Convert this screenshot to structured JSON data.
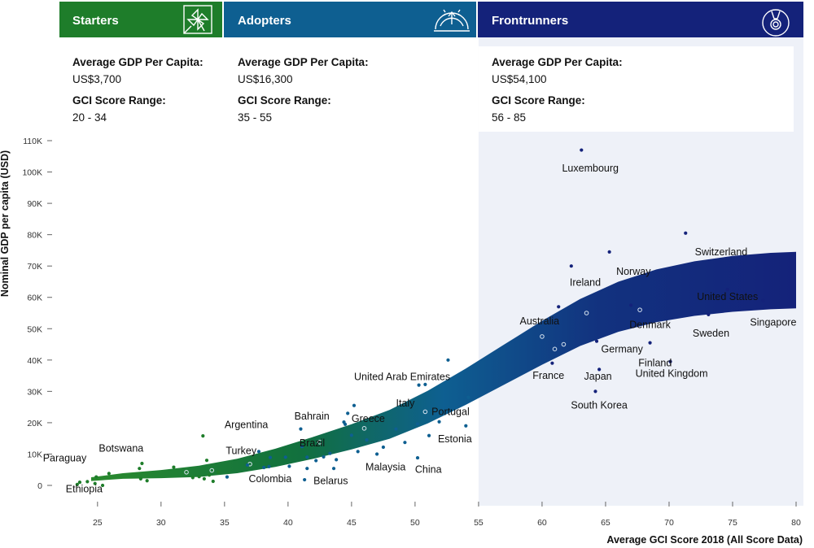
{
  "segments": [
    {
      "key": "starters",
      "name": "Starters",
      "color": "#1e7d2a",
      "icon": "pinwheel-icon",
      "gdp_heading": "Average GDP Per Capita:",
      "gdp_value": "US$3,700",
      "gci_heading": "GCI Score Range:",
      "gci_value": "20 - 34"
    },
    {
      "key": "adopters",
      "name": "Adopters",
      "color": "#0e5f91",
      "icon": "gauge-icon",
      "gdp_heading": "Average GDP Per Capita:",
      "gdp_value": "US$16,300",
      "gci_heading": "GCI Score Range:",
      "gci_value": "35 - 55"
    },
    {
      "key": "frontrunners",
      "name": "Frontrunners",
      "color": "#14227a",
      "icon": "medal-icon",
      "gdp_heading": "Average GDP Per Capita:",
      "gdp_value": "US$54,100",
      "gci_heading": "GCI Score Range:",
      "gci_value": "56 - 85"
    }
  ],
  "chart_data": {
    "type": "scatter",
    "xlabel": "Average GCI Score 2018 (All Score Data)",
    "ylabel": "Nominal GDP per capita (USD)",
    "xlim": [
      22,
      80
    ],
    "ylim": [
      -2000,
      115000
    ],
    "xticks": [
      25,
      30,
      35,
      40,
      45,
      50,
      55,
      60,
      65,
      70,
      75,
      80
    ],
    "yticks": [
      0,
      10000,
      20000,
      30000,
      40000,
      50000,
      60000,
      70000,
      80000,
      90000,
      100000,
      110000
    ],
    "ytick_labels": [
      "0",
      "10K",
      "20K",
      "30K",
      "40K",
      "50K",
      "60K",
      "70K",
      "80K",
      "90K",
      "100K",
      "110K"
    ],
    "frontrunner_zone_start": 55,
    "segment_colors": {
      "starters": "#1e7d2a",
      "adopters": "#0e5f91",
      "frontrunners": "#14227a"
    },
    "trend_band": [
      {
        "x": 24.5,
        "y": 2000,
        "w": 600
      },
      {
        "x": 27,
        "y": 3000,
        "w": 900
      },
      {
        "x": 30,
        "y": 3600,
        "w": 1300
      },
      {
        "x": 33,
        "y": 4500,
        "w": 1800
      },
      {
        "x": 36,
        "y": 6200,
        "w": 2300
      },
      {
        "x": 39,
        "y": 8800,
        "w": 2900
      },
      {
        "x": 42,
        "y": 12000,
        "w": 3500
      },
      {
        "x": 45,
        "y": 15500,
        "w": 4000
      },
      {
        "x": 48,
        "y": 19500,
        "w": 4600
      },
      {
        "x": 51,
        "y": 25000,
        "w": 5200
      },
      {
        "x": 54,
        "y": 31500,
        "w": 5800
      },
      {
        "x": 57,
        "y": 38500,
        "w": 6400
      },
      {
        "x": 60,
        "y": 45500,
        "w": 7000
      },
      {
        "x": 63,
        "y": 52000,
        "w": 7500
      },
      {
        "x": 66,
        "y": 57000,
        "w": 8000
      },
      {
        "x": 69,
        "y": 60500,
        "w": 8400
      },
      {
        "x": 72,
        "y": 62800,
        "w": 8700
      },
      {
        "x": 75,
        "y": 64300,
        "w": 8900
      },
      {
        "x": 78,
        "y": 65200,
        "w": 9000
      },
      {
        "x": 80,
        "y": 65500,
        "w": 9000
      }
    ],
    "band_markers": [
      {
        "x": 32,
        "y": 4200
      },
      {
        "x": 34,
        "y": 4800
      },
      {
        "x": 37,
        "y": 6800
      },
      {
        "x": 42.5,
        "y": 13800
      },
      {
        "x": 46,
        "y": 18200
      },
      {
        "x": 50.8,
        "y": 23500
      },
      {
        "x": 60,
        "y": 47500
      },
      {
        "x": 61,
        "y": 43500
      },
      {
        "x": 61.7,
        "y": 45000
      },
      {
        "x": 63.5,
        "y": 55000
      },
      {
        "x": 67.7,
        "y": 56000
      }
    ],
    "labeled_points": [
      {
        "name": "Ethiopia",
        "x": 23.4,
        "y": 300,
        "segment": "starters",
        "lx": 22.5,
        "ly": -2200,
        "anchor": "start"
      },
      {
        "name": "Paraguay",
        "x": 24.9,
        "y": 2700,
        "segment": "starters",
        "lx": 20.7,
        "ly": 7600,
        "anchor": "start"
      },
      {
        "name": "Botswana",
        "x": 28.5,
        "y": 7000,
        "segment": "starters",
        "lx": 25.1,
        "ly": 10800,
        "anchor": "start"
      },
      {
        "name": "Argentina",
        "x": 33.3,
        "y": 15800,
        "segment": "starters",
        "lx": 35,
        "ly": 18300,
        "anchor": "start"
      },
      {
        "name": "Turkey",
        "x": 37.7,
        "y": 10800,
        "segment": "adopters",
        "lx": 35.1,
        "ly": 10000,
        "anchor": "start"
      },
      {
        "name": "Colombia",
        "x": 38.5,
        "y": 6000,
        "segment": "adopters",
        "lx": 36.9,
        "ly": 1000,
        "anchor": "start"
      },
      {
        "name": "Bahrain",
        "x": 41,
        "y": 18000,
        "segment": "adopters",
        "lx": 40.5,
        "ly": 21000,
        "anchor": "start"
      },
      {
        "name": "Brazil",
        "x": 41.5,
        "y": 9000,
        "segment": "adopters",
        "lx": 40.9,
        "ly": 12400,
        "anchor": "start"
      },
      {
        "name": "Belarus",
        "x": 41.3,
        "y": 1800,
        "segment": "adopters",
        "lx": 42,
        "ly": 400,
        "anchor": "start"
      },
      {
        "name": "Greece",
        "x": 44.5,
        "y": 19500,
        "segment": "adopters",
        "lx": 45,
        "ly": 20200,
        "anchor": "start"
      },
      {
        "name": "Malaysia",
        "x": 47,
        "y": 10000,
        "segment": "adopters",
        "lx": 46.1,
        "ly": 4800,
        "anchor": "start"
      },
      {
        "name": "Italy",
        "x": 50.3,
        "y": 32000,
        "segment": "adopters",
        "lx": 48.5,
        "ly": 25200,
        "anchor": "start"
      },
      {
        "name": "United Arab Emirates",
        "x": 52.6,
        "y": 40000,
        "segment": "adopters",
        "lx": 45.2,
        "ly": 33600,
        "anchor": "start"
      },
      {
        "name": "Portugal",
        "x": 51.7,
        "y": 23000,
        "segment": "adopters",
        "lx": 51.3,
        "ly": 22500,
        "anchor": "start"
      },
      {
        "name": "Estonia",
        "x": 54,
        "y": 19000,
        "segment": "adopters",
        "lx": 51.8,
        "ly": 13700,
        "anchor": "start"
      },
      {
        "name": "China",
        "x": 50.2,
        "y": 8800,
        "segment": "adopters",
        "lx": 50,
        "ly": 4000,
        "anchor": "start"
      },
      {
        "name": "Luxembourg",
        "x": 63.1,
        "y": 107000,
        "segment": "frontrunners",
        "lx": 63.8,
        "ly": 100200,
        "anchor": "middle"
      },
      {
        "name": "Switzerland",
        "x": 71.3,
        "y": 80500,
        "segment": "frontrunners",
        "lx": 74.1,
        "ly": 73400,
        "anchor": "middle"
      },
      {
        "name": "Norway",
        "x": 65.3,
        "y": 74500,
        "segment": "frontrunners",
        "lx": 67.2,
        "ly": 67200,
        "anchor": "middle"
      },
      {
        "name": "Ireland",
        "x": 62.3,
        "y": 70000,
        "segment": "frontrunners",
        "lx": 63.4,
        "ly": 63700,
        "anchor": "middle"
      },
      {
        "name": "United States",
        "x": 74.6,
        "y": 62500,
        "segment": "frontrunners",
        "lx": 74.6,
        "ly": 59200,
        "anchor": "middle"
      },
      {
        "name": "Australia",
        "x": 61.3,
        "y": 57000,
        "segment": "frontrunners",
        "lx": 59.8,
        "ly": 51400,
        "anchor": "middle"
      },
      {
        "name": "Singapore",
        "x": 77.4,
        "y": 59000,
        "segment": "frontrunners",
        "lx": 78.2,
        "ly": 51000,
        "anchor": "middle"
      },
      {
        "name": "Sweden",
        "x": 73.1,
        "y": 54500,
        "segment": "frontrunners",
        "lx": 73.3,
        "ly": 47500,
        "anchor": "middle"
      },
      {
        "name": "Denmark",
        "x": 67,
        "y": 57500,
        "segment": "frontrunners",
        "lx": 68.5,
        "ly": 50200,
        "anchor": "middle"
      },
      {
        "name": "Germany",
        "x": 64.3,
        "y": 46000,
        "segment": "frontrunners",
        "lx": 66.3,
        "ly": 42400,
        "anchor": "middle"
      },
      {
        "name": "Finland",
        "x": 68.5,
        "y": 45500,
        "segment": "frontrunners",
        "lx": 68.9,
        "ly": 38000,
        "anchor": "middle"
      },
      {
        "name": "France",
        "x": 60.8,
        "y": 39000,
        "segment": "frontrunners",
        "lx": 60.5,
        "ly": 34000,
        "anchor": "middle"
      },
      {
        "name": "Japan",
        "x": 64.5,
        "y": 37000,
        "segment": "frontrunners",
        "lx": 64.4,
        "ly": 33700,
        "anchor": "middle"
      },
      {
        "name": "United Kingdom",
        "x": 70.1,
        "y": 39500,
        "segment": "frontrunners",
        "lx": 70.2,
        "ly": 34600,
        "anchor": "middle"
      },
      {
        "name": "South Korea",
        "x": 64.2,
        "y": 30000,
        "segment": "frontrunners",
        "lx": 64.5,
        "ly": 24500,
        "anchor": "middle"
      }
    ],
    "other_points": [
      {
        "x": 23.6,
        "y": 1000,
        "segment": "starters"
      },
      {
        "x": 24.2,
        "y": 1200,
        "segment": "starters"
      },
      {
        "x": 24.8,
        "y": 600,
        "segment": "starters"
      },
      {
        "x": 25.4,
        "y": 0,
        "segment": "starters"
      },
      {
        "x": 25.9,
        "y": 3800,
        "segment": "starters"
      },
      {
        "x": 28.3,
        "y": 5400,
        "segment": "starters"
      },
      {
        "x": 28.4,
        "y": 2100,
        "segment": "starters"
      },
      {
        "x": 28.9,
        "y": 1500,
        "segment": "starters"
      },
      {
        "x": 31,
        "y": 5800,
        "segment": "starters"
      },
      {
        "x": 32.5,
        "y": 2500,
        "segment": "starters"
      },
      {
        "x": 33,
        "y": 2800,
        "segment": "starters"
      },
      {
        "x": 33.4,
        "y": 2100,
        "segment": "starters"
      },
      {
        "x": 33.6,
        "y": 8000,
        "segment": "starters"
      },
      {
        "x": 33.8,
        "y": 3300,
        "segment": "starters"
      },
      {
        "x": 34.1,
        "y": 1300,
        "segment": "starters"
      },
      {
        "x": 34.5,
        "y": 4200,
        "segment": "starters"
      },
      {
        "x": 35.2,
        "y": 2700,
        "segment": "adopters"
      },
      {
        "x": 36.8,
        "y": 6500,
        "segment": "adopters"
      },
      {
        "x": 38.1,
        "y": 5700,
        "segment": "adopters"
      },
      {
        "x": 38.6,
        "y": 8900,
        "segment": "adopters"
      },
      {
        "x": 39.8,
        "y": 9000,
        "segment": "adopters"
      },
      {
        "x": 40.1,
        "y": 6100,
        "segment": "adopters"
      },
      {
        "x": 41.1,
        "y": 12400,
        "segment": "adopters"
      },
      {
        "x": 41.5,
        "y": 5400,
        "segment": "adopters"
      },
      {
        "x": 42.2,
        "y": 7900,
        "segment": "adopters"
      },
      {
        "x": 42.8,
        "y": 9100,
        "segment": "adopters"
      },
      {
        "x": 43.3,
        "y": 10200,
        "segment": "adopters"
      },
      {
        "x": 43.6,
        "y": 5400,
        "segment": "adopters"
      },
      {
        "x": 43.8,
        "y": 8200,
        "segment": "adopters"
      },
      {
        "x": 44.4,
        "y": 20200,
        "segment": "adopters"
      },
      {
        "x": 44.7,
        "y": 23000,
        "segment": "adopters"
      },
      {
        "x": 45,
        "y": 16000,
        "segment": "adopters"
      },
      {
        "x": 45.2,
        "y": 25500,
        "segment": "adopters"
      },
      {
        "x": 45.5,
        "y": 10800,
        "segment": "adopters"
      },
      {
        "x": 46.2,
        "y": 14500,
        "segment": "adopters"
      },
      {
        "x": 47.5,
        "y": 12200,
        "segment": "adopters"
      },
      {
        "x": 48.5,
        "y": 18000,
        "segment": "adopters"
      },
      {
        "x": 49.2,
        "y": 13700,
        "segment": "adopters"
      },
      {
        "x": 50.2,
        "y": 19600,
        "segment": "adopters"
      },
      {
        "x": 50.8,
        "y": 32200,
        "segment": "adopters"
      },
      {
        "x": 51.1,
        "y": 15900,
        "segment": "adopters"
      },
      {
        "x": 51.9,
        "y": 20300,
        "segment": "adopters"
      },
      {
        "x": 54.2,
        "y": 28100,
        "segment": "adopters"
      }
    ]
  }
}
